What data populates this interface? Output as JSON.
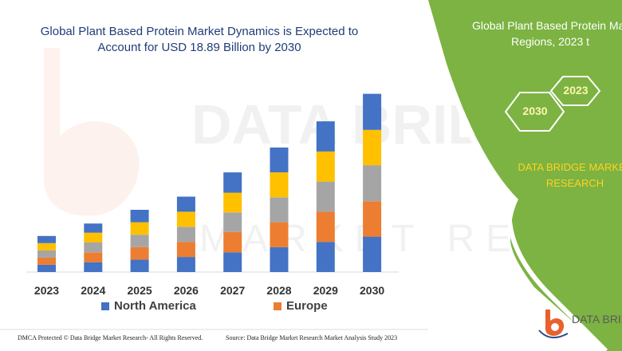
{
  "chart_data": {
    "type": "bar",
    "stacked": true,
    "title": "Global Plant Based Protein Market Dynamics is Expected to Account for USD 18.89 Billion by 2030",
    "title_lines": [
      "Global Plant Based Protein Market Dynamics is Expected to",
      "Account for USD 18.89 Billion by 2030"
    ],
    "categories": [
      "2023",
      "2024",
      "2025",
      "2026",
      "2027",
      "2028",
      "2029",
      "2030"
    ],
    "series": [
      {
        "name": "North America",
        "color": "#4472c4",
        "values": [
          1.1,
          1.5,
          1.9,
          2.3,
          3.0,
          3.8,
          4.6,
          5.4
        ]
      },
      {
        "name": "Europe",
        "color": "#ed7d31",
        "values": [
          1.1,
          1.5,
          1.9,
          2.3,
          3.1,
          3.8,
          4.6,
          5.4
        ]
      },
      {
        "name": "",
        "color": "#a5a5a5",
        "values": [
          1.1,
          1.5,
          1.9,
          2.3,
          3.0,
          3.8,
          4.6,
          5.5
        ]
      },
      {
        "name": "",
        "color": "#ffc000",
        "values": [
          1.1,
          1.5,
          1.9,
          2.3,
          3.0,
          3.8,
          4.6,
          5.4
        ]
      },
      {
        "name": "",
        "color": "#4472c4",
        "values": [
          1.1,
          1.4,
          1.9,
          2.3,
          3.1,
          3.8,
          4.6,
          5.5
        ]
      }
    ],
    "legend_entries": [
      "North America",
      "Europe"
    ],
    "xlabel": "",
    "ylabel": "",
    "ylim": [
      0,
      28
    ],
    "grid": false,
    "legend_position": "bottom"
  },
  "right_panel": {
    "title_line1": "Global Plant Based Protein Mar",
    "title_line2": "Regions, 2023 t",
    "hex_labels": [
      "2023",
      "2030"
    ],
    "company_line1": "DATA BRIDGE MARKET",
    "company_line2": "RESEARCH",
    "panel_color": "#7cb342",
    "logo_text": "DATA BRID"
  },
  "footer": {
    "left": "DMCA Protected © Data Bridge Market Research-  All Rights Reserved.",
    "right": "Source: Data Bridge Market Research  Market Analysis Study 2023"
  }
}
